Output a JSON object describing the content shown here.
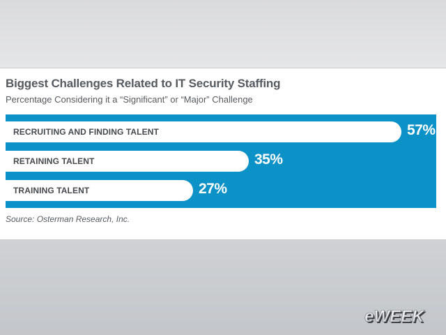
{
  "chart_data": {
    "type": "bar",
    "orientation": "horizontal",
    "title": "Biggest Challenges Related to IT Security Staffing",
    "subtitle": "Percentage Considering it a “Significant” or “Major” Challenge",
    "categories": [
      "RECRUITING AND FINDING TALENT",
      "RETAINING TALENT",
      "TRAINING TALENT"
    ],
    "values": [
      57,
      35,
      27
    ],
    "value_labels": [
      "57%",
      "35%",
      "27%"
    ],
    "xlim": [
      0,
      62
    ],
    "grid": false,
    "legend": "none",
    "source": "Source: Osterman Research, Inc."
  },
  "colors": {
    "plot_background": "#0c92c6",
    "bar": "#ffffff",
    "value_text": "#ffffff"
  },
  "branding": {
    "logo_text": "eWEEK",
    "logo_icon": "eweek-logo-icon"
  }
}
